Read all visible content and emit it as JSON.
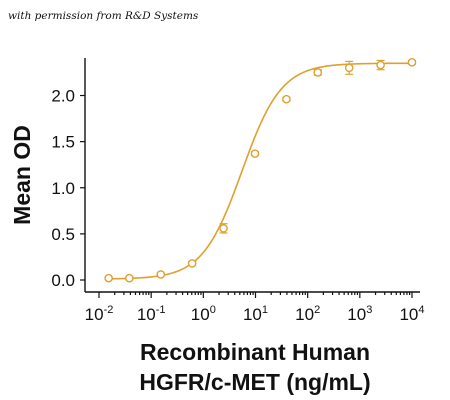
{
  "credit": "with permission from R&D Systems",
  "chart_data": {
    "type": "scatter",
    "xscale": "log",
    "xlim": [
      0.01,
      10000
    ],
    "ylim": [
      0,
      2.45
    ],
    "ylabel": "Mean OD",
    "xlabel_lines": [
      "Recombinant Human",
      "HGFR/c-MET (ng/mL)"
    ],
    "xticks": [
      {
        "base": "10",
        "exp": "-2",
        "value": 0.01
      },
      {
        "base": "10",
        "exp": "-1",
        "value": 0.1
      },
      {
        "base": "10",
        "exp": "0",
        "value": 1
      },
      {
        "base": "10",
        "exp": "1",
        "value": 10
      },
      {
        "base": "10",
        "exp": "2",
        "value": 100
      },
      {
        "base": "10",
        "exp": "3",
        "value": 1000
      },
      {
        "base": "10",
        "exp": "4",
        "value": 10000
      }
    ],
    "yticks": [
      {
        "label": "0.0",
        "value": 0.0
      },
      {
        "label": "0.5",
        "value": 0.5
      },
      {
        "label": "1.0",
        "value": 1.0
      },
      {
        "label": "1.5",
        "value": 1.5
      },
      {
        "label": "2.0",
        "value": 2.0
      }
    ],
    "series": [
      {
        "color": "#e0a030",
        "points": [
          {
            "x": 0.0153,
            "y": 0.02,
            "err": 0.01
          },
          {
            "x": 0.0381,
            "y": 0.02,
            "err": 0.01
          },
          {
            "x": 0.153,
            "y": 0.06,
            "err": 0.01
          },
          {
            "x": 0.61,
            "y": 0.18,
            "err": 0.02
          },
          {
            "x": 2.44,
            "y": 0.56,
            "err": 0.05
          },
          {
            "x": 9.77,
            "y": 1.37,
            "err": 0.02
          },
          {
            "x": 39.1,
            "y": 1.96,
            "err": 0.02
          },
          {
            "x": 156,
            "y": 2.25,
            "err": 0.03
          },
          {
            "x": 625,
            "y": 2.3,
            "err": 0.07
          },
          {
            "x": 2500,
            "y": 2.33,
            "err": 0.05
          },
          {
            "x": 10000,
            "y": 2.36,
            "err": 0.02
          }
        ],
        "fit": {
          "bottom": 0.01,
          "top": 2.35,
          "ec50": 5.5,
          "hill": 1.15
        }
      }
    ]
  }
}
